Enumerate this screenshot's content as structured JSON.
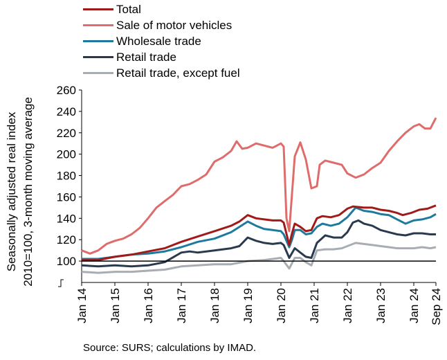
{
  "chart_data": {
    "type": "line",
    "ylabel_lines": [
      "Seasonally adjusted real index",
      "2010=100, 3-month moving average"
    ],
    "ylim": [
      80,
      260
    ],
    "yticks": [
      100,
      120,
      140,
      160,
      180,
      200,
      220,
      240,
      260
    ],
    "x_start": "2014-01",
    "x_end": "2024-09",
    "xtick_labels": [
      "Jan 14",
      "Jan 15",
      "Jan 16",
      "Jan 17",
      "Jan 18",
      "Jan 19",
      "Jan 20",
      "Jan 21",
      "Jan 22",
      "Jan 23",
      "Jan 24",
      "Sep 24"
    ],
    "grid": false,
    "reference_line": 100,
    "legend_position": "top",
    "series": [
      {
        "name": "Total",
        "color": "#a01a1a",
        "points": [
          [
            "2014-01",
            101
          ],
          [
            "2014-07",
            101
          ],
          [
            "2015-01",
            104
          ],
          [
            "2015-07",
            106
          ],
          [
            "2016-01",
            109
          ],
          [
            "2016-07",
            112
          ],
          [
            "2017-01",
            118
          ],
          [
            "2017-07",
            123
          ],
          [
            "2018-01",
            128
          ],
          [
            "2018-07",
            133
          ],
          [
            "2018-10",
            137
          ],
          [
            "2019-01",
            143
          ],
          [
            "2019-04",
            140
          ],
          [
            "2019-07",
            139
          ],
          [
            "2019-10",
            138
          ],
          [
            "2020-01",
            138
          ],
          [
            "2020-02",
            136
          ],
          [
            "2020-04",
            115
          ],
          [
            "2020-05",
            126
          ],
          [
            "2020-06",
            135
          ],
          [
            "2020-08",
            132
          ],
          [
            "2020-10",
            128
          ],
          [
            "2020-12",
            129
          ],
          [
            "2021-02",
            140
          ],
          [
            "2021-04",
            142
          ],
          [
            "2021-07",
            141
          ],
          [
            "2021-10",
            143
          ],
          [
            "2022-01",
            149
          ],
          [
            "2022-03",
            151
          ],
          [
            "2022-07",
            150
          ],
          [
            "2022-10",
            150
          ],
          [
            "2023-01",
            148
          ],
          [
            "2023-04",
            147
          ],
          [
            "2023-07",
            145
          ],
          [
            "2023-09",
            143
          ],
          [
            "2023-12",
            145
          ],
          [
            "2024-03",
            148
          ],
          [
            "2024-06",
            149
          ],
          [
            "2024-09",
            152
          ]
        ]
      },
      {
        "name": "Sale of motor vehicles",
        "color": "#e06b6b",
        "points": [
          [
            "2014-01",
            110
          ],
          [
            "2014-04",
            107
          ],
          [
            "2014-07",
            110
          ],
          [
            "2014-10",
            116
          ],
          [
            "2015-01",
            119
          ],
          [
            "2015-04",
            121
          ],
          [
            "2015-07",
            125
          ],
          [
            "2015-10",
            131
          ],
          [
            "2016-01",
            140
          ],
          [
            "2016-04",
            150
          ],
          [
            "2016-07",
            156
          ],
          [
            "2016-10",
            162
          ],
          [
            "2017-01",
            170
          ],
          [
            "2017-04",
            172
          ],
          [
            "2017-07",
            176
          ],
          [
            "2017-10",
            181
          ],
          [
            "2018-01",
            193
          ],
          [
            "2018-04",
            197
          ],
          [
            "2018-07",
            203
          ],
          [
            "2018-09",
            212
          ],
          [
            "2018-11",
            205
          ],
          [
            "2019-01",
            206
          ],
          [
            "2019-04",
            210
          ],
          [
            "2019-07",
            208
          ],
          [
            "2019-10",
            206
          ],
          [
            "2020-01",
            210
          ],
          [
            "2020-02",
            207
          ],
          [
            "2020-03",
            140
          ],
          [
            "2020-04",
            128
          ],
          [
            "2020-06",
            198
          ],
          [
            "2020-08",
            211
          ],
          [
            "2020-10",
            195
          ],
          [
            "2020-12",
            168
          ],
          [
            "2021-02",
            170
          ],
          [
            "2021-03",
            190
          ],
          [
            "2021-05",
            194
          ],
          [
            "2021-08",
            192
          ],
          [
            "2021-11",
            190
          ],
          [
            "2022-01",
            182
          ],
          [
            "2022-04",
            178
          ],
          [
            "2022-07",
            181
          ],
          [
            "2022-10",
            187
          ],
          [
            "2023-01",
            192
          ],
          [
            "2023-04",
            203
          ],
          [
            "2023-07",
            212
          ],
          [
            "2023-10",
            220
          ],
          [
            "2024-01",
            226
          ],
          [
            "2024-03",
            228
          ],
          [
            "2024-05",
            224
          ],
          [
            "2024-07",
            224
          ],
          [
            "2024-09",
            234
          ]
        ]
      },
      {
        "name": "Wholesale trade",
        "color": "#1e7a9c",
        "points": [
          [
            "2014-01",
            102
          ],
          [
            "2014-07",
            102
          ],
          [
            "2015-01",
            104
          ],
          [
            "2015-07",
            106
          ],
          [
            "2016-01",
            107
          ],
          [
            "2016-07",
            109
          ],
          [
            "2017-01",
            113
          ],
          [
            "2017-07",
            118
          ],
          [
            "2018-01",
            121
          ],
          [
            "2018-07",
            127
          ],
          [
            "2018-10",
            132
          ],
          [
            "2019-01",
            137
          ],
          [
            "2019-04",
            133
          ],
          [
            "2019-07",
            130
          ],
          [
            "2019-10",
            129
          ],
          [
            "2020-01",
            128
          ],
          [
            "2020-02",
            125
          ],
          [
            "2020-04",
            113
          ],
          [
            "2020-05",
            120
          ],
          [
            "2020-06",
            129
          ],
          [
            "2020-08",
            129
          ],
          [
            "2020-10",
            125
          ],
          [
            "2020-12",
            126
          ],
          [
            "2021-02",
            132
          ],
          [
            "2021-04",
            135
          ],
          [
            "2021-07",
            133
          ],
          [
            "2021-10",
            135
          ],
          [
            "2022-01",
            141
          ],
          [
            "2022-04",
            150
          ],
          [
            "2022-07",
            147
          ],
          [
            "2022-10",
            146
          ],
          [
            "2023-01",
            144
          ],
          [
            "2023-04",
            143
          ],
          [
            "2023-07",
            139
          ],
          [
            "2023-10",
            135
          ],
          [
            "2024-01",
            138
          ],
          [
            "2024-04",
            139
          ],
          [
            "2024-07",
            141
          ],
          [
            "2024-09",
            144
          ]
        ]
      },
      {
        "name": "Retail trade",
        "color": "#2a3a4e",
        "points": [
          [
            "2014-01",
            96
          ],
          [
            "2014-07",
            95
          ],
          [
            "2015-01",
            96
          ],
          [
            "2015-07",
            95
          ],
          [
            "2016-01",
            96
          ],
          [
            "2016-07",
            99
          ],
          [
            "2017-01",
            108
          ],
          [
            "2017-04",
            109
          ],
          [
            "2017-07",
            108
          ],
          [
            "2018-01",
            110
          ],
          [
            "2018-07",
            112
          ],
          [
            "2018-10",
            114
          ],
          [
            "2019-01",
            122
          ],
          [
            "2019-04",
            119
          ],
          [
            "2019-07",
            117
          ],
          [
            "2019-10",
            116
          ],
          [
            "2020-01",
            117
          ],
          [
            "2020-02",
            115
          ],
          [
            "2020-04",
            103
          ],
          [
            "2020-06",
            112
          ],
          [
            "2020-08",
            108
          ],
          [
            "2020-10",
            104
          ],
          [
            "2020-12",
            103
          ],
          [
            "2021-02",
            117
          ],
          [
            "2021-05",
            124
          ],
          [
            "2021-08",
            122
          ],
          [
            "2021-11",
            122
          ],
          [
            "2022-01",
            127
          ],
          [
            "2022-03",
            136
          ],
          [
            "2022-05",
            138
          ],
          [
            "2022-07",
            135
          ],
          [
            "2022-10",
            133
          ],
          [
            "2023-01",
            129
          ],
          [
            "2023-04",
            127
          ],
          [
            "2023-07",
            125
          ],
          [
            "2023-10",
            124
          ],
          [
            "2024-01",
            126
          ],
          [
            "2024-04",
            126
          ],
          [
            "2024-07",
            125
          ],
          [
            "2024-09",
            125
          ]
        ]
      },
      {
        "name": "Retail trade, except fuel",
        "color": "#a7adb2",
        "points": [
          [
            "2014-01",
            90
          ],
          [
            "2014-07",
            89
          ],
          [
            "2015-01",
            90
          ],
          [
            "2015-07",
            90
          ],
          [
            "2016-01",
            91
          ],
          [
            "2016-07",
            92
          ],
          [
            "2017-01",
            95
          ],
          [
            "2017-07",
            96
          ],
          [
            "2018-01",
            97
          ],
          [
            "2018-07",
            97
          ],
          [
            "2019-01",
            100
          ],
          [
            "2019-07",
            101
          ],
          [
            "2020-01",
            103
          ],
          [
            "2020-02",
            100
          ],
          [
            "2020-04",
            93
          ],
          [
            "2020-06",
            103
          ],
          [
            "2020-08",
            103
          ],
          [
            "2020-10",
            99
          ],
          [
            "2020-12",
            96
          ],
          [
            "2021-02",
            110
          ],
          [
            "2021-05",
            111
          ],
          [
            "2021-08",
            111
          ],
          [
            "2021-11",
            112
          ],
          [
            "2022-01",
            114
          ],
          [
            "2022-04",
            117
          ],
          [
            "2022-07",
            116
          ],
          [
            "2022-10",
            115
          ],
          [
            "2023-01",
            114
          ],
          [
            "2023-04",
            113
          ],
          [
            "2023-07",
            112
          ],
          [
            "2023-10",
            112
          ],
          [
            "2024-01",
            112
          ],
          [
            "2024-04",
            113
          ],
          [
            "2024-07",
            112
          ],
          [
            "2024-09",
            113
          ]
        ]
      }
    ]
  },
  "source": "Source: SURS; calculations by IMAD."
}
